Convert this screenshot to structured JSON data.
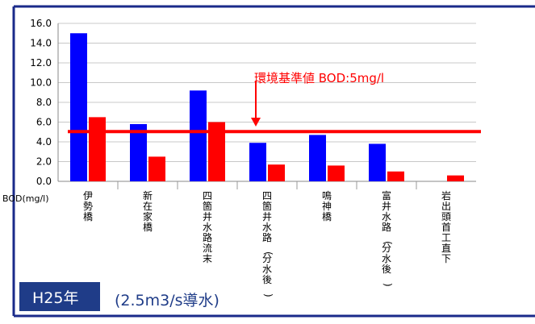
{
  "chart_data": {
    "type": "bar",
    "categories": [
      "伊勢橋",
      "新在家橋",
      "四箇井水路流末",
      "四箇井水路(分水後)",
      "鳴神橋",
      "富井水路(分水後)",
      "岩出頭首工直下"
    ],
    "series": [
      {
        "values": [
          15.0,
          5.8,
          9.2,
          3.9,
          4.7,
          3.8,
          0.0
        ],
        "color": "#0000ff"
      },
      {
        "values": [
          6.5,
          2.5,
          6.0,
          1.7,
          1.6,
          1.0,
          0.6
        ],
        "color": "#ff0000"
      }
    ],
    "ylim": [
      0,
      16
    ],
    "yticks": [
      "0.0",
      "2.0",
      "4.0",
      "6.0",
      "8.0",
      "10.0",
      "12.0",
      "14.0",
      "16.0"
    ],
    "ylabel": "BOD(mg/l)",
    "grid": true,
    "reference_line": {
      "value": 5.0,
      "label": "環境基準値 BOD:5mg/l",
      "color": "#ff0000"
    }
  },
  "footer": {
    "year_label": "H25年",
    "flow_note": "(2.5m3/s導水)",
    "badge_color": "#1f3c88",
    "text_color": "#1f3c88"
  },
  "frame_color": "#1a2a8a"
}
